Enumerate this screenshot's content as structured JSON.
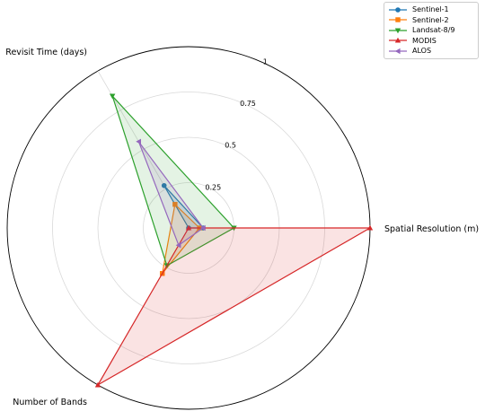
{
  "chart_data": {
    "type": "radar",
    "title": "",
    "axes": [
      "Spatial Resolution (m)",
      "Number of Bands",
      "Revisit Time (days)"
    ],
    "rlim": [
      0,
      1
    ],
    "rticks": [
      "0.25",
      "0.5",
      "0.75",
      "1"
    ],
    "rtick_values": [
      0.25,
      0.5,
      0.75,
      1
    ],
    "grid": true,
    "legend_position": "top-right",
    "series": [
      {
        "name": "Sentinel-1",
        "values": [
          0.08,
          0.0,
          0.27
        ],
        "color": "#1f77b4",
        "marker": "circle"
      },
      {
        "name": "Sentinel-2",
        "values": [
          0.06,
          0.29,
          0.15
        ],
        "color": "#ff7f0e",
        "marker": "square"
      },
      {
        "name": "Landsat-8/9",
        "values": [
          0.25,
          0.24,
          0.84
        ],
        "color": "#2ca02c",
        "marker": "triangle-down"
      },
      {
        "name": "MODIS",
        "values": [
          1.0,
          1.0,
          0.0
        ],
        "color": "#d62728",
        "marker": "triangle-up"
      },
      {
        "name": "ALOS",
        "values": [
          0.08,
          0.11,
          0.55
        ],
        "color": "#9467bd",
        "marker": "triangle-left"
      }
    ]
  }
}
